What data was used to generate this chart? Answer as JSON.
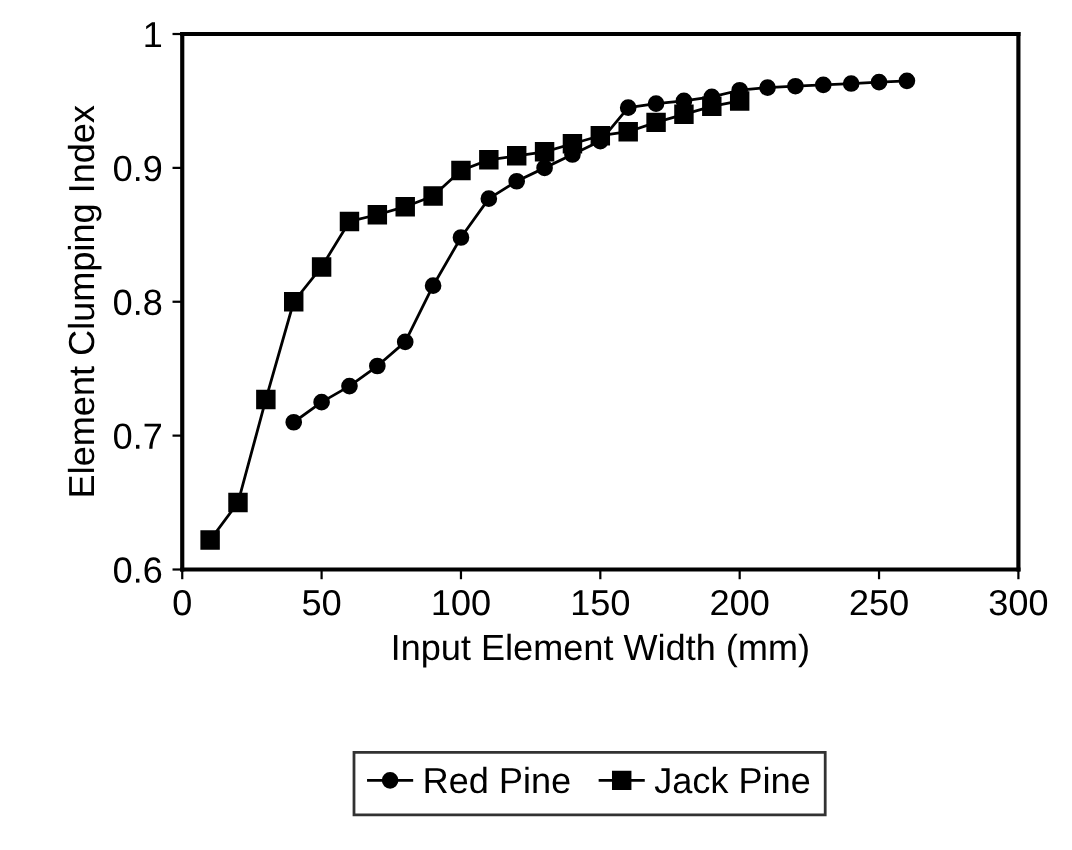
{
  "chart_data": {
    "type": "line",
    "xlabel": "Input Element Width (mm)",
    "ylabel": "Element Clumping Index",
    "xlim": [
      0,
      300
    ],
    "xticks": [
      0,
      50,
      100,
      150,
      200,
      250,
      300
    ],
    "ylim": [
      0.6,
      1
    ],
    "yticks": [
      0.6,
      0.7,
      0.8,
      0.9,
      1
    ],
    "grid": false,
    "legend": "bottom",
    "series": [
      {
        "name": "Red Pine",
        "color": "#000000",
        "marker": "circle",
        "x": [
          40,
          50,
          60,
          70,
          80,
          90,
          100,
          110,
          120,
          130,
          140,
          150,
          160,
          170,
          180,
          190,
          200,
          210,
          220,
          230,
          240,
          250,
          260
        ],
        "values": [
          0.71,
          0.725,
          0.737,
          0.752,
          0.77,
          0.812,
          0.848,
          0.877,
          0.89,
          0.9,
          0.91,
          0.92,
          0.945,
          0.948,
          0.95,
          0.953,
          0.958,
          0.96,
          0.961,
          0.962,
          0.963,
          0.964,
          0.965
        ]
      },
      {
        "name": "Jack Pine",
        "color": "#000000",
        "marker": "square",
        "x": [
          10,
          20,
          30,
          40,
          50,
          60,
          70,
          80,
          90,
          100,
          110,
          120,
          130,
          140,
          150,
          160,
          170,
          180,
          190,
          200
        ],
        "values": [
          0.622,
          0.65,
          0.727,
          0.8,
          0.826,
          0.86,
          0.865,
          0.871,
          0.879,
          0.898,
          0.906,
          0.909,
          0.912,
          0.918,
          0.924,
          0.927,
          0.934,
          0.94,
          0.946,
          0.95
        ]
      }
    ]
  }
}
